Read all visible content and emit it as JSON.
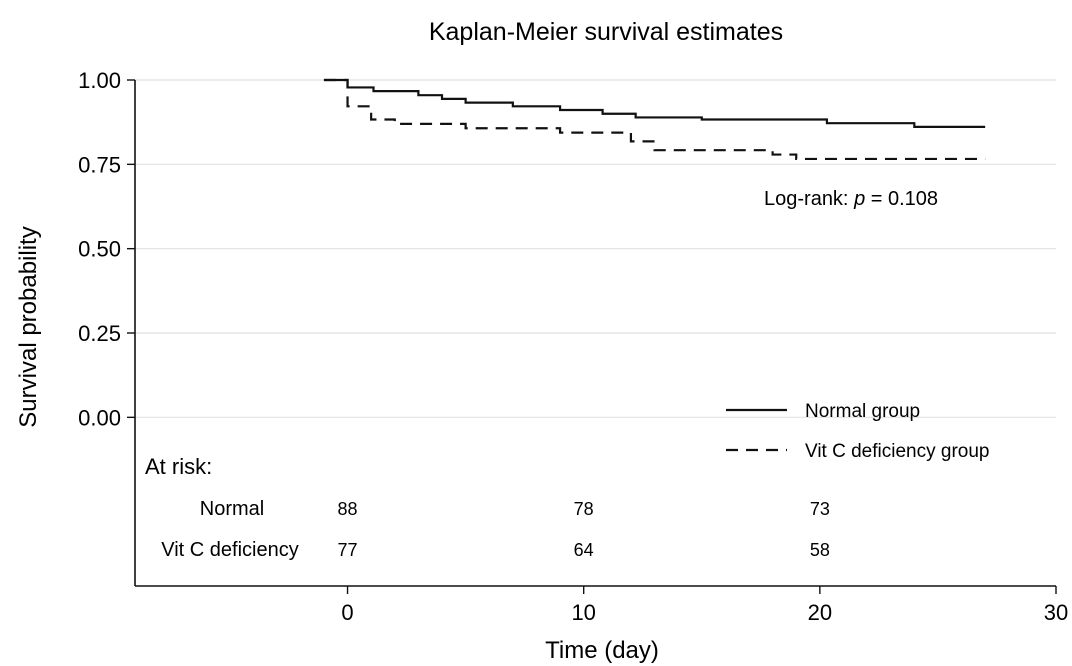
{
  "chart_data": {
    "type": "line",
    "title": "Kaplan-Meier survival estimates",
    "xlabel": "Time (day)",
    "ylabel": "Survival probability",
    "xlim": [
      -9,
      30
    ],
    "ylim": [
      -0.5,
      1.0
    ],
    "xticks": [
      0,
      10,
      20,
      30
    ],
    "xtick_labels": [
      "0",
      "10",
      "20",
      "30"
    ],
    "yticks": [
      0.0,
      0.25,
      0.5,
      0.75,
      1.0
    ],
    "ytick_labels": [
      "0.00",
      "0.25",
      "0.50",
      "0.75",
      "1.00"
    ],
    "grid": true,
    "legend": {
      "position": "bottom-right",
      "entries": [
        {
          "label": "Normal group",
          "style": "solid"
        },
        {
          "label": "Vit C deficiency group",
          "style": "dashed"
        }
      ]
    },
    "annotation": {
      "text_prefix": "Log-rank: ",
      "variable": "p",
      "text_suffix": " = 0.108"
    },
    "series": [
      {
        "name": "Normal group",
        "style": "solid",
        "step": true,
        "x": [
          -1,
          0,
          0.9,
          1.1,
          3,
          4,
          5,
          7,
          9,
          10.8,
          12.2,
          15,
          20.3,
          24,
          27
        ],
        "y": [
          1.0,
          0.978,
          0.978,
          0.967,
          0.955,
          0.944,
          0.933,
          0.922,
          0.911,
          0.9,
          0.889,
          0.883,
          0.872,
          0.861,
          0.861
        ]
      },
      {
        "name": "Vit C deficiency group",
        "style": "dashed",
        "step": true,
        "x": [
          -1,
          0,
          1,
          2,
          5,
          9,
          12,
          13,
          18,
          19,
          27
        ],
        "y": [
          1.0,
          0.922,
          0.883,
          0.87,
          0.857,
          0.844,
          0.818,
          0.792,
          0.779,
          0.766,
          0.766
        ]
      }
    ],
    "at_risk": {
      "title": "At risk:",
      "times": [
        0,
        10,
        20
      ],
      "rows": [
        {
          "label": "Normal",
          "values": [
            "88",
            "78",
            "73"
          ]
        },
        {
          "label": "Vit C deficiency",
          "values": [
            "77",
            "64",
            "58"
          ]
        }
      ]
    }
  }
}
